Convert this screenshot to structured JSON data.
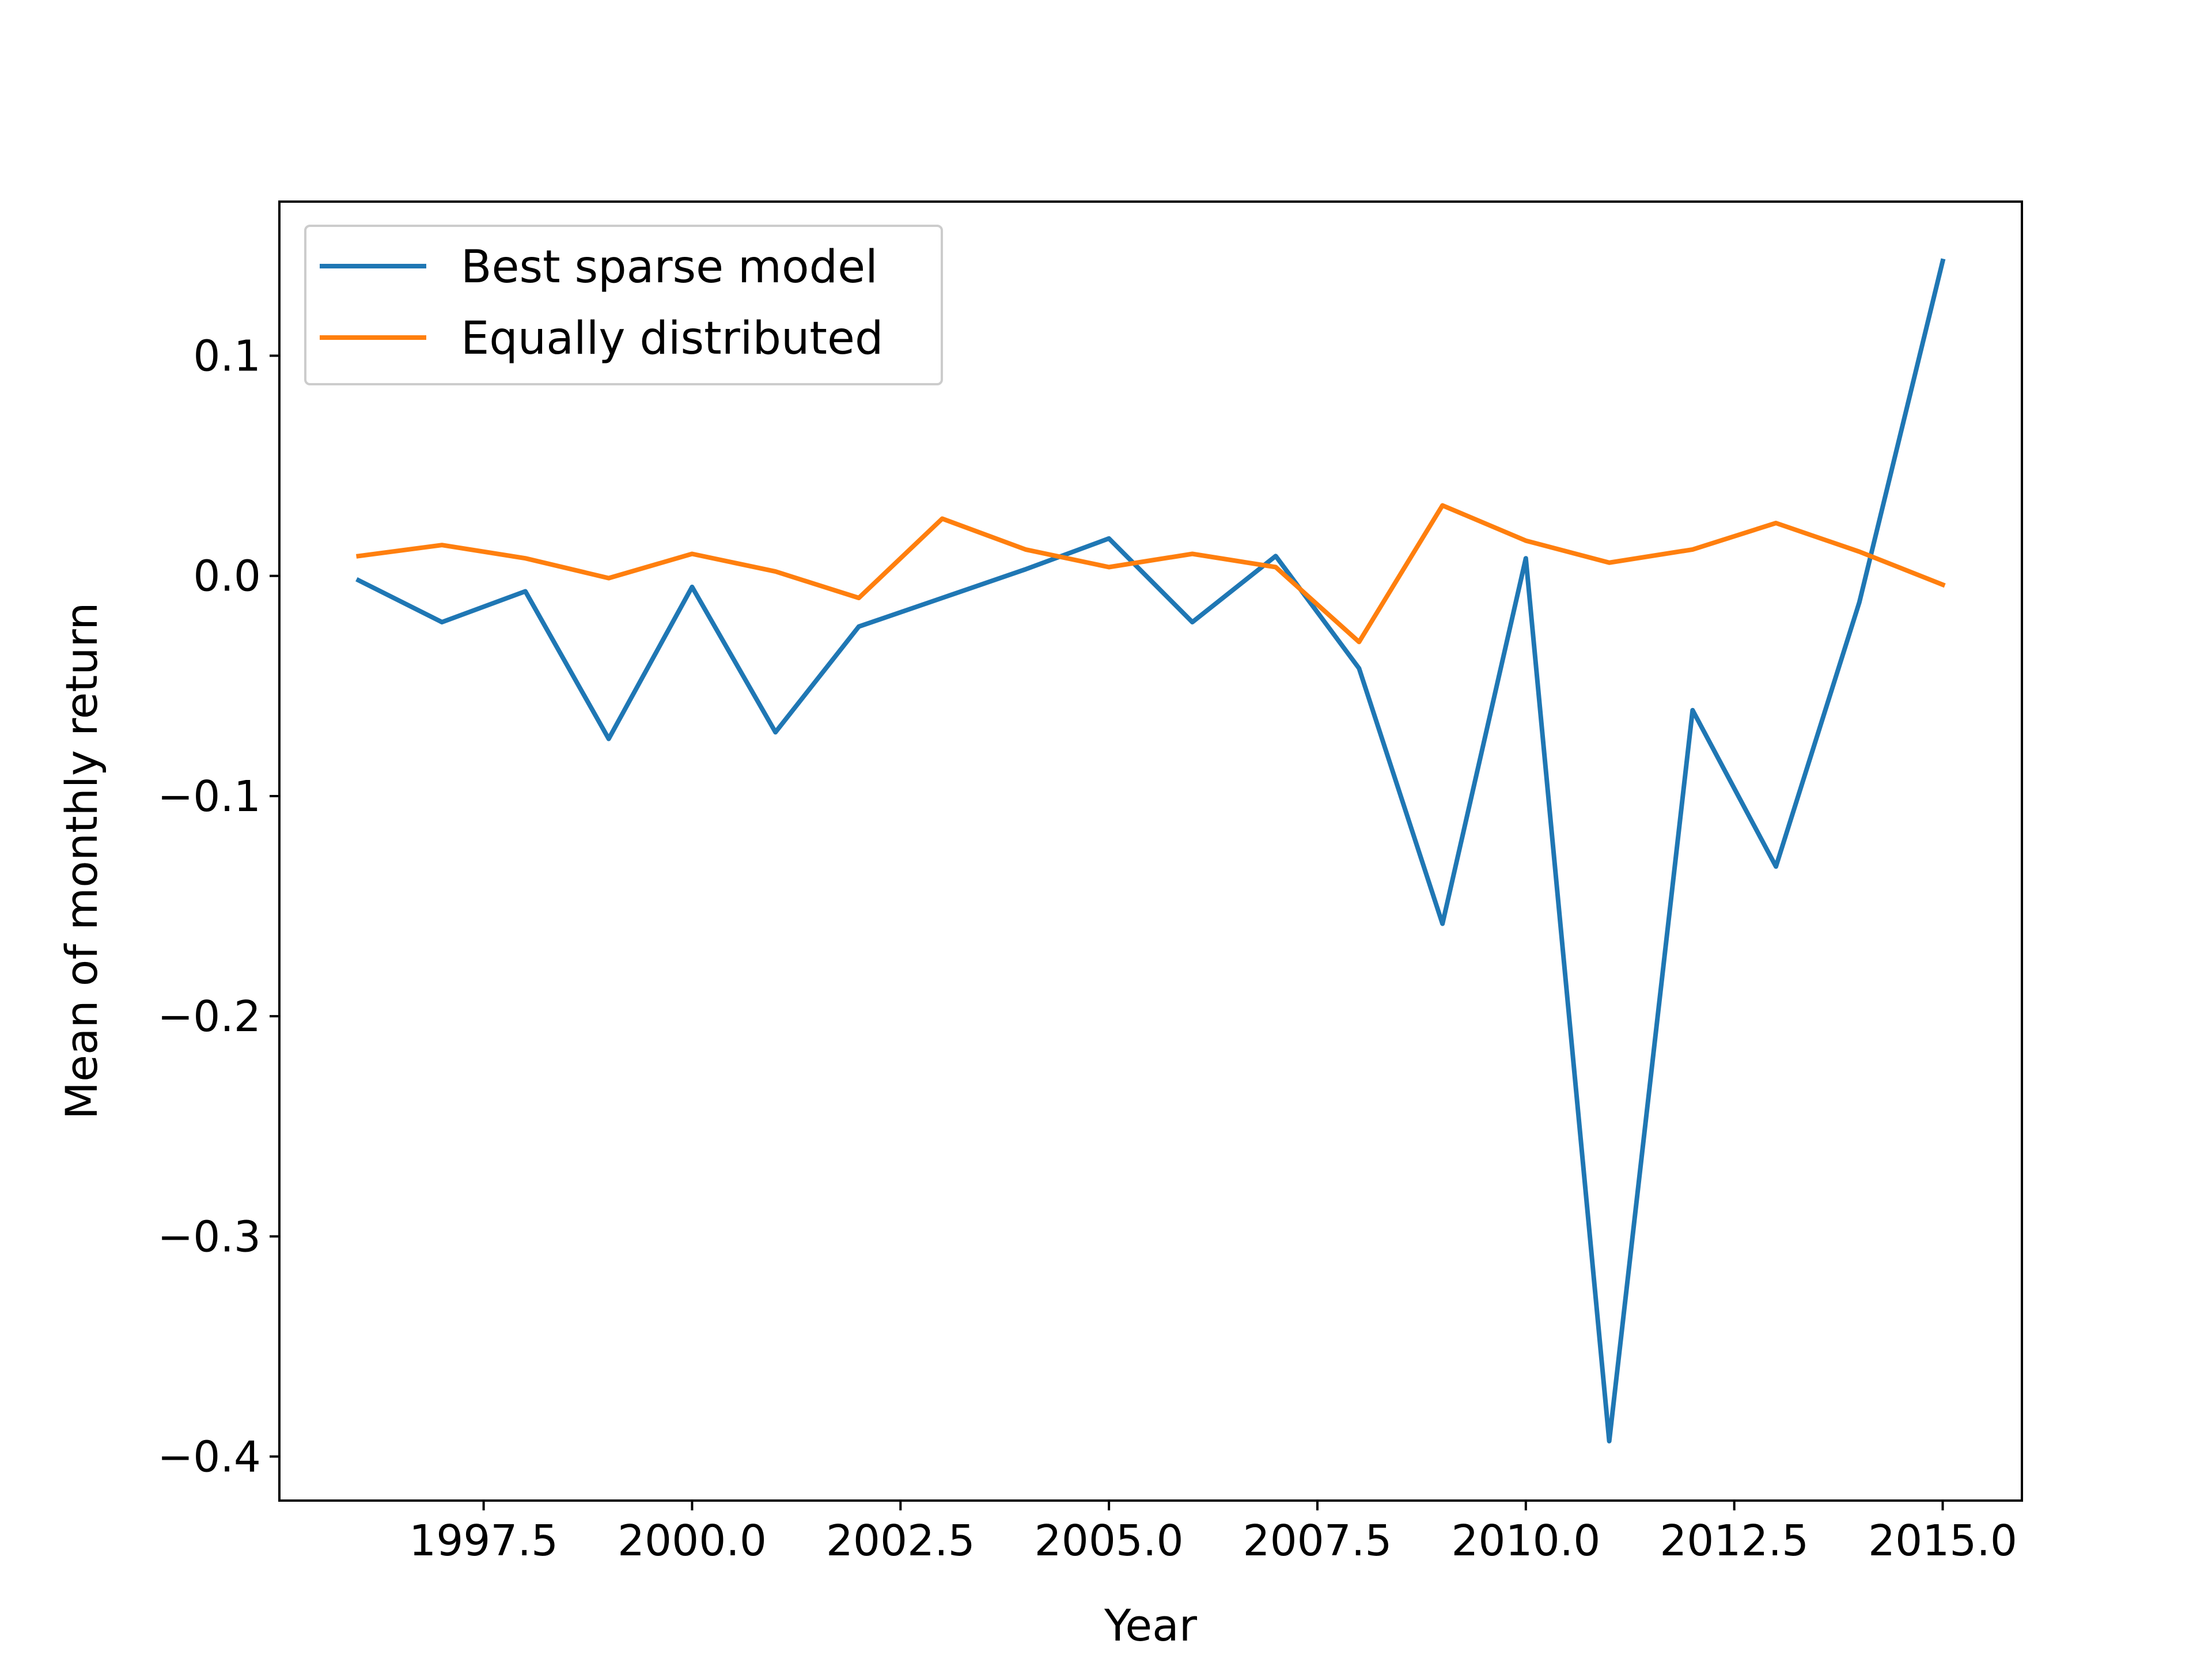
{
  "chart_data": {
    "type": "line",
    "title": "",
    "xlabel": "Year",
    "ylabel": "Mean of monthly return",
    "xlim": [
      1995.05,
      2015.95
    ],
    "ylim": [
      -0.42,
      0.17
    ],
    "x_ticks": [
      1997.5,
      2000.0,
      2002.5,
      2005.0,
      2007.5,
      2010.0,
      2012.5,
      2015.0
    ],
    "x_tick_labels": [
      "1997.5",
      "2000.0",
      "2002.5",
      "2005.0",
      "2007.5",
      "2010.0",
      "2012.5",
      "2015.0"
    ],
    "y_ticks": [
      0.1,
      0.0,
      -0.1,
      -0.2,
      -0.3,
      -0.4
    ],
    "y_tick_labels": [
      "0.1",
      "0.0",
      "−0.1",
      "−0.2",
      "−0.3",
      "−0.4"
    ],
    "grid": false,
    "legend_position": "upper-left",
    "x": [
      1996,
      1997,
      1998,
      1999,
      2000,
      2001,
      2002,
      2003,
      2004,
      2005,
      2006,
      2007,
      2008,
      2009,
      2010,
      2011,
      2012,
      2013,
      2014,
      2015
    ],
    "series": [
      {
        "name": "Best sparse model",
        "color": "#1f77b4",
        "values": [
          -0.002,
          -0.021,
          -0.007,
          -0.074,
          -0.005,
          -0.071,
          -0.023,
          -0.01,
          0.003,
          0.017,
          -0.021,
          0.009,
          -0.042,
          -0.158,
          0.008,
          -0.393,
          -0.061,
          -0.132,
          -0.012,
          0.143
        ]
      },
      {
        "name": "Equally distributed",
        "color": "#ff7f0e",
        "values": [
          0.009,
          0.014,
          0.008,
          -0.001,
          0.01,
          0.002,
          -0.01,
          0.026,
          0.012,
          0.004,
          0.01,
          0.004,
          -0.03,
          0.032,
          0.016,
          0.006,
          0.012,
          0.024,
          0.011,
          -0.004
        ]
      }
    ]
  }
}
